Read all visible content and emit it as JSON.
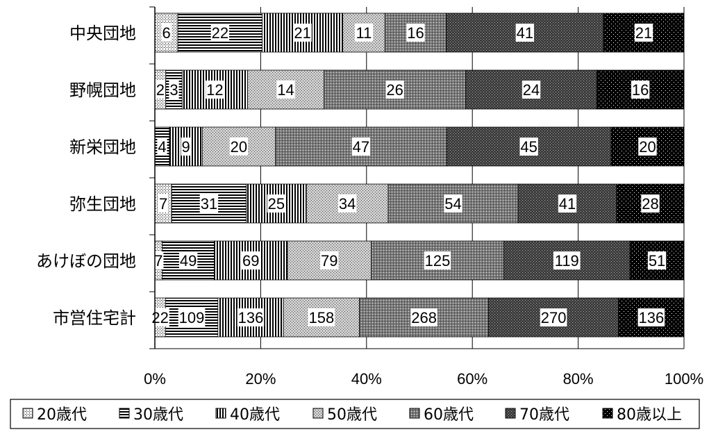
{
  "chart_data": {
    "type": "bar",
    "orientation": "horizontal",
    "stacked": "percent",
    "categories": [
      "中央団地",
      "野幌団地",
      "新栄団地",
      "弥生団地",
      "あけぼの団地",
      "市営住宅計"
    ],
    "series": [
      {
        "name": "20歳代",
        "values": [
          6,
          2,
          0,
          7,
          7,
          22
        ],
        "labels": [
          "6",
          "2",
          "",
          "7",
          "7",
          "22"
        ]
      },
      {
        "name": "30歳代",
        "values": [
          22,
          3,
          4,
          31,
          49,
          109
        ],
        "labels": [
          "22",
          "3",
          "4",
          "31",
          "49",
          "109"
        ]
      },
      {
        "name": "40歳代",
        "values": [
          21,
          12,
          9,
          25,
          69,
          136
        ],
        "labels": [
          "21",
          "12",
          "9",
          "25",
          "69",
          "136"
        ]
      },
      {
        "name": "50歳代",
        "values": [
          11,
          14,
          20,
          34,
          79,
          158
        ],
        "labels": [
          "11",
          "14",
          "20",
          "34",
          "79",
          "158"
        ]
      },
      {
        "name": "60歳代",
        "values": [
          16,
          26,
          47,
          54,
          125,
          268
        ],
        "labels": [
          "16",
          "26",
          "47",
          "54",
          "125",
          "268"
        ]
      },
      {
        "name": "70歳代",
        "values": [
          41,
          24,
          45,
          41,
          119,
          270
        ],
        "labels": [
          "41",
          "24",
          "45",
          "41",
          "119",
          "270"
        ]
      },
      {
        "name": "80歳以上",
        "values": [
          21,
          16,
          20,
          28,
          51,
          136
        ],
        "labels": [
          "21",
          "16",
          "20",
          "28",
          "51",
          "136"
        ]
      }
    ],
    "x_ticks": [
      "0%",
      "20%",
      "40%",
      "60%",
      "80%",
      "100%"
    ],
    "xlim": [
      0,
      100
    ],
    "legend_position": "bottom",
    "grid": "vertical"
  }
}
